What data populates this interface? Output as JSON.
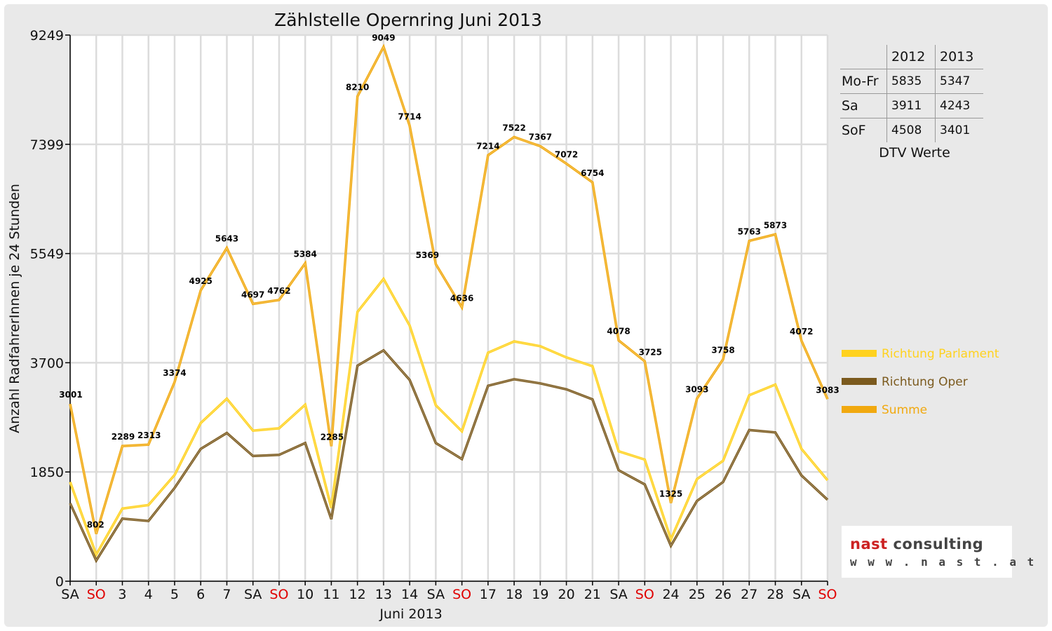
{
  "chart_data": {
    "type": "line",
    "title": "Zählstelle Opernring Juni 2013",
    "xlabel": "Juni 2013",
    "ylabel": "Anzahl RadfahrerInnen je 24 Stunden",
    "ylim": [
      0,
      9249
    ],
    "yticks": [
      0,
      1850,
      3700,
      5549,
      7399,
      9249
    ],
    "grid": true,
    "legend_position": "right",
    "categories": [
      "SA",
      "SO",
      "3",
      "4",
      "5",
      "6",
      "7",
      "SA",
      "SO",
      "10",
      "11",
      "12",
      "13",
      "14",
      "SA",
      "SO",
      "17",
      "18",
      "19",
      "20",
      "21",
      "SA",
      "SO",
      "24",
      "25",
      "26",
      "27",
      "28",
      "SA",
      "SO"
    ],
    "sunday_indices": [
      1,
      8,
      15,
      22,
      29
    ],
    "sunday_color": "#e00000",
    "series": [
      {
        "name": "Richtung Parlament",
        "color": "#ffd21f",
        "values": [
          1680,
          450,
          1230,
          1290,
          1800,
          2680,
          3090,
          2550,
          2590,
          2990,
          1240,
          4560,
          5120,
          4330,
          2980,
          2540,
          3870,
          4060,
          3980,
          3790,
          3640,
          2200,
          2060,
          710,
          1730,
          2040,
          3150,
          3330,
          2240,
          1710
        ]
      },
      {
        "name": "Richtung Oper",
        "color": "#7b5a1e",
        "values": [
          1320,
          350,
          1060,
          1020,
          1580,
          2240,
          2510,
          2120,
          2140,
          2340,
          1050,
          3650,
          3910,
          3410,
          2340,
          2070,
          3310,
          3420,
          3350,
          3250,
          3080,
          1880,
          1640,
          600,
          1360,
          1680,
          2560,
          2520,
          1790,
          1380
        ]
      },
      {
        "name": "Summe",
        "color": "#f1a90f",
        "values": [
          3001,
          802,
          2289,
          2313,
          3374,
          4925,
          5643,
          4697,
          4762,
          5384,
          2285,
          8210,
          9049,
          7714,
          5369,
          4636,
          7214,
          7522,
          7367,
          7072,
          6754,
          4078,
          3725,
          1325,
          3093,
          3758,
          5763,
          5873,
          4072,
          3083
        ]
      }
    ],
    "data_labels": [
      "3001",
      "802",
      "2289",
      "2313",
      "3374",
      "4925",
      "5643",
      "4697",
      "4762",
      "5384",
      "2285",
      "8210",
      "9049",
      "7714",
      "5369",
      "4636",
      "7214",
      "7522",
      "7367",
      "7072",
      "6754",
      "4078",
      "3725",
      "1325",
      "3093",
      "3758",
      "5763",
      "5873",
      "4072",
      "3083"
    ]
  },
  "dtv_table": {
    "headers": [
      "2012",
      "2013"
    ],
    "rows": [
      {
        "label": "Mo-Fr",
        "v2012": "5835",
        "v2013": "5347"
      },
      {
        "label": "Sa",
        "v2012": "3911",
        "v2013": "4243"
      },
      {
        "label": "SoF",
        "v2012": "4508",
        "v2013": "3401"
      }
    ],
    "caption": "DTV Werte"
  },
  "logo": {
    "part1": "nast",
    "part2": "consulting",
    "url_text": "w w w . n a s t . a t"
  }
}
